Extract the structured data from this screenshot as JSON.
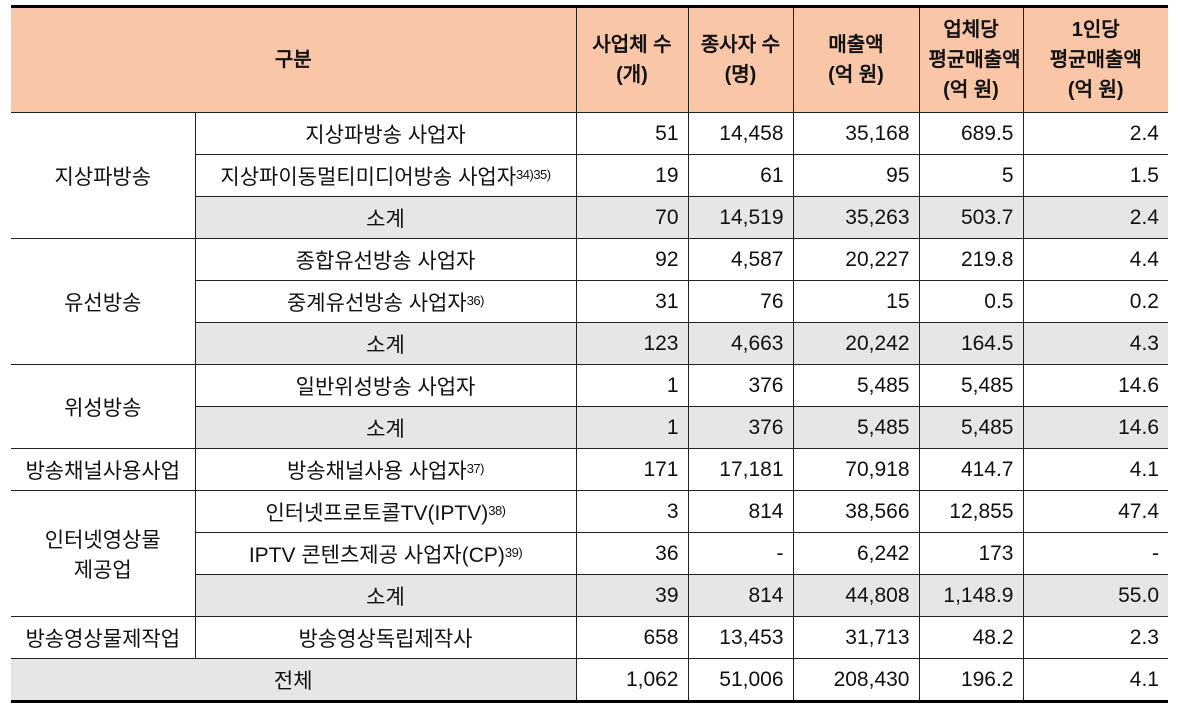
{
  "headers": [
    "구분",
    "사업체 수\n(개)",
    "종사자 수\n(명)",
    "매출액\n(억 원)",
    "업체당\n평균매출액\n(억 원)",
    "1인당\n평균매출액\n(억 원)"
  ],
  "groups": [
    {
      "name": "지상파방송",
      "rows": [
        {
          "label": "지상파방송 사업자",
          "note": "",
          "values": [
            "51",
            "14,458",
            "35,168",
            "689.5",
            "2.4"
          ],
          "subtotal": false
        },
        {
          "label": "지상파이동멀티미디어방송 사업자",
          "note": "34)35)",
          "values": [
            "19",
            "61",
            "95",
            "5",
            "1.5"
          ],
          "subtotal": false
        },
        {
          "label": "소계",
          "note": "",
          "values": [
            "70",
            "14,519",
            "35,263",
            "503.7",
            "2.4"
          ],
          "subtotal": true
        }
      ]
    },
    {
      "name": "유선방송",
      "rows": [
        {
          "label": "종합유선방송 사업자",
          "note": "",
          "values": [
            "92",
            "4,587",
            "20,227",
            "219.8",
            "4.4"
          ],
          "subtotal": false
        },
        {
          "label": "중계유선방송 사업자",
          "note": "36)",
          "values": [
            "31",
            "76",
            "15",
            "0.5",
            "0.2"
          ],
          "subtotal": false
        },
        {
          "label": "소계",
          "note": "",
          "values": [
            "123",
            "4,663",
            "20,242",
            "164.5",
            "4.3"
          ],
          "subtotal": true
        }
      ]
    },
    {
      "name": "위성방송",
      "rows": [
        {
          "label": "일반위성방송 사업자",
          "note": "",
          "values": [
            "1",
            "376",
            "5,485",
            "5,485",
            "14.6"
          ],
          "subtotal": false
        },
        {
          "label": "소계",
          "note": "",
          "values": [
            "1",
            "376",
            "5,485",
            "5,485",
            "14.6"
          ],
          "subtotal": true
        }
      ]
    },
    {
      "name": "방송채널사용사업",
      "rows": [
        {
          "label": "방송채널사용 사업자",
          "note": "37)",
          "values": [
            "171",
            "17,181",
            "70,918",
            "414.7",
            "4.1"
          ],
          "subtotal": false
        }
      ]
    },
    {
      "name": "인터넷영상물\n제공업",
      "rows": [
        {
          "label": "인터넷프로토콜TV(IPTV)",
          "note": "38)",
          "values": [
            "3",
            "814",
            "38,566",
            "12,855",
            "47.4"
          ],
          "subtotal": false
        },
        {
          "label": "IPTV 콘텐츠제공 사업자(CP)",
          "note": "39)",
          "values": [
            "36",
            "-",
            "6,242",
            "173",
            "-"
          ],
          "subtotal": false
        },
        {
          "label": "소계",
          "note": "",
          "values": [
            "39",
            "814",
            "44,808",
            "1,148.9",
            "55.0"
          ],
          "subtotal": true
        }
      ]
    },
    {
      "name": "방송영상물제작업",
      "rows": [
        {
          "label": "방송영상독립제작사",
          "note": "",
          "values": [
            "658",
            "13,453",
            "31,713",
            "48.2",
            "2.3"
          ],
          "subtotal": false
        }
      ]
    }
  ],
  "total": {
    "label": "전체",
    "values": [
      "1,062",
      "51,006",
      "208,430",
      "196.2",
      "4.1"
    ]
  },
  "colors": {
    "header_bg": "#f9c7a8",
    "subtotal_bg": "#e6e6e6"
  }
}
